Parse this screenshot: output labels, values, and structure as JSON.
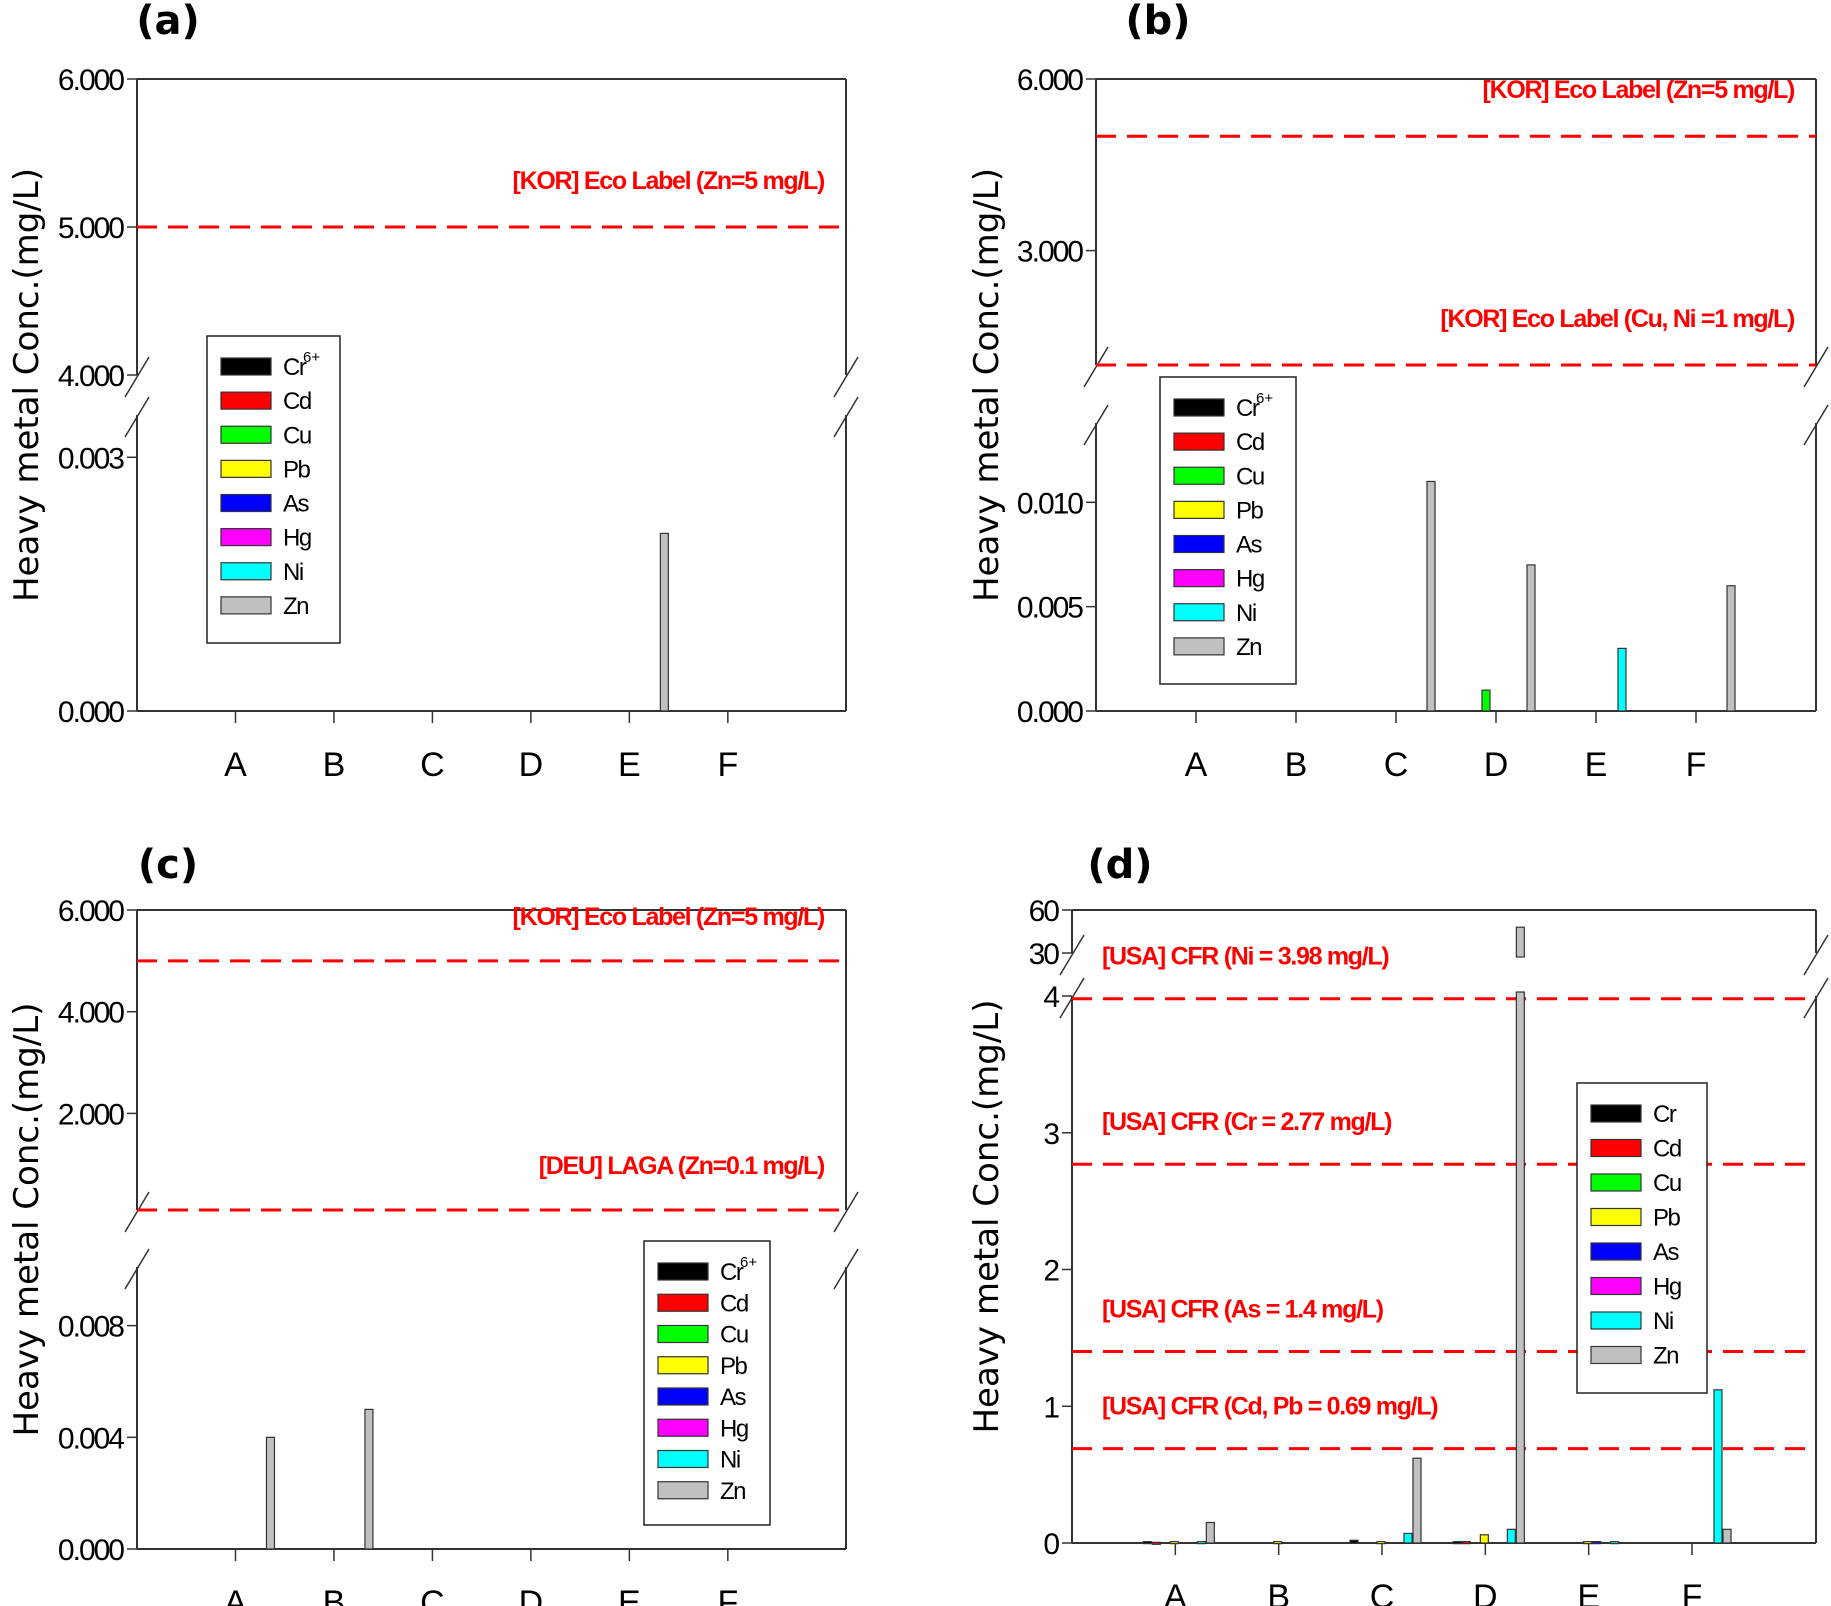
{
  "chart_data": [
    {
      "panel": "(a)",
      "type": "bar",
      "ylabel": "Heavy metal Conc.(mg/L)",
      "xlabel": "",
      "categories": [
        "A",
        "B",
        "C",
        "D",
        "E",
        "F"
      ],
      "broken_axis": true,
      "axis_segments": [
        {
          "range": [
            0,
            0.0035
          ],
          "ticks": [
            {
              "v": 0,
              "label": "0.000"
            },
            {
              "v": 0.003,
              "label": "0.003"
            }
          ]
        },
        {
          "range": [
            4,
            6
          ],
          "ticks": [
            {
              "v": 4,
              "label": "4.000"
            },
            {
              "v": 5,
              "label": "5.000"
            },
            {
              "v": 6,
              "label": "6.000"
            }
          ]
        }
      ],
      "series": [
        {
          "name": "Cr6+",
          "color": "#000000",
          "values": [
            0,
            0,
            0,
            0,
            0,
            0
          ]
        },
        {
          "name": "Cd",
          "color": "#ff0000",
          "values": [
            0,
            0,
            0,
            0,
            0,
            0
          ]
        },
        {
          "name": "Cu",
          "color": "#00ff00",
          "values": [
            0,
            0,
            0,
            0,
            0,
            0
          ]
        },
        {
          "name": "Pb",
          "color": "#ffff00",
          "values": [
            0,
            0,
            0,
            0,
            0,
            0
          ]
        },
        {
          "name": "As",
          "color": "#0000ff",
          "values": [
            0,
            0,
            0,
            0,
            0,
            0
          ]
        },
        {
          "name": "Hg",
          "color": "#ff00ff",
          "values": [
            0,
            0,
            0,
            0,
            0,
            0
          ]
        },
        {
          "name": "Ni",
          "color": "#00ffff",
          "values": [
            0,
            0,
            0,
            0,
            0,
            0
          ]
        },
        {
          "name": "Zn",
          "color": "#c0c0c0",
          "values": [
            0,
            0,
            0,
            0,
            0.0021,
            0
          ]
        }
      ],
      "legend": {
        "entries": [
          "Cr",
          "Cd",
          "Cu",
          "Pb",
          "As",
          "Hg",
          "Ni",
          "Zn"
        ],
        "first_superscript": "6+",
        "placement": "left-middle"
      },
      "reference_lines": [
        {
          "value": 5,
          "label": "[KOR] Eco Label (Zn=5 mg/L)",
          "color": "#ff0000",
          "style": "dashed"
        }
      ]
    },
    {
      "panel": "(b)",
      "type": "bar",
      "ylabel": "Heavy metal Conc.(mg/L)",
      "xlabel": "",
      "categories": [
        "A",
        "B",
        "C",
        "D",
        "E",
        "F"
      ],
      "broken_axis": true,
      "axis_segments": [
        {
          "range": [
            0,
            0.0138
          ],
          "ticks": [
            {
              "v": 0,
              "label": "0.000"
            },
            {
              "v": 0.005,
              "label": "0.005"
            },
            {
              "v": 0.01,
              "label": "0.010"
            }
          ]
        },
        {
          "range": [
            1,
            6
          ],
          "ticks": [
            {
              "v": 3,
              "label": "3.000"
            },
            {
              "v": 6,
              "label": "6.000"
            }
          ]
        }
      ],
      "series": [
        {
          "name": "Cr6+",
          "color": "#000000",
          "values": [
            0,
            0,
            0,
            0,
            0,
            0
          ]
        },
        {
          "name": "Cd",
          "color": "#ff0000",
          "values": [
            0,
            0,
            0,
            0,
            0,
            0
          ]
        },
        {
          "name": "Cu",
          "color": "#00ff00",
          "values": [
            0,
            0,
            0,
            0.001,
            0,
            0
          ]
        },
        {
          "name": "Pb",
          "color": "#ffff00",
          "values": [
            0,
            0,
            0,
            0,
            0,
            0
          ]
        },
        {
          "name": "As",
          "color": "#0000ff",
          "values": [
            0,
            0,
            0,
            0,
            0,
            0
          ]
        },
        {
          "name": "Hg",
          "color": "#ff00ff",
          "values": [
            0,
            0,
            0,
            0,
            0,
            0
          ]
        },
        {
          "name": "Ni",
          "color": "#00ffff",
          "values": [
            0,
            0,
            0,
            0,
            0.003,
            0
          ]
        },
        {
          "name": "Zn",
          "color": "#c0c0c0",
          "values": [
            0,
            0,
            0.011,
            0.007,
            0,
            0.006
          ]
        }
      ],
      "legend": {
        "entries": [
          "Cr",
          "Cd",
          "Cu",
          "Pb",
          "As",
          "Hg",
          "Ni",
          "Zn"
        ],
        "first_superscript": "6+",
        "placement": "left-middle"
      },
      "reference_lines": [
        {
          "value": 5,
          "label": "[KOR] Eco Label (Zn=5 mg/L)",
          "color": "#ff0000",
          "style": "dashed"
        },
        {
          "value": 1,
          "label": "[KOR] Eco Label (Cu, Ni =1 mg/L)",
          "color": "#ff0000",
          "style": "dashed"
        }
      ]
    },
    {
      "panel": "(c)",
      "type": "bar",
      "ylabel": "Heavy metal Conc.(mg/L)",
      "xlabel": "",
      "categories": [
        "A",
        "B",
        "C",
        "D",
        "E",
        "F"
      ],
      "broken_axis": true,
      "axis_segments": [
        {
          "range": [
            0,
            0.0101
          ],
          "ticks": [
            {
              "v": 0,
              "label": "0.000"
            },
            {
              "v": 0.004,
              "label": "0.004"
            },
            {
              "v": 0.008,
              "label": "0.008"
            }
          ]
        },
        {
          "range": [
            0.1,
            6
          ],
          "ticks": [
            {
              "v": 2,
              "label": "2.000"
            },
            {
              "v": 4,
              "label": "4.000"
            },
            {
              "v": 6,
              "label": "6.000"
            }
          ]
        }
      ],
      "series": [
        {
          "name": "Cr6+",
          "color": "#000000",
          "values": [
            0,
            0,
            0,
            0,
            0,
            0
          ]
        },
        {
          "name": "Cd",
          "color": "#ff0000",
          "values": [
            0,
            0,
            0,
            0,
            0,
            0
          ]
        },
        {
          "name": "Cu",
          "color": "#00ff00",
          "values": [
            0,
            0,
            0,
            0,
            0,
            0
          ]
        },
        {
          "name": "Pb",
          "color": "#ffff00",
          "values": [
            0,
            0,
            0,
            0,
            0,
            0
          ]
        },
        {
          "name": "As",
          "color": "#0000ff",
          "values": [
            0,
            0,
            0,
            0,
            0,
            0
          ]
        },
        {
          "name": "Hg",
          "color": "#ff00ff",
          "values": [
            0,
            0,
            0,
            0,
            0,
            0
          ]
        },
        {
          "name": "Ni",
          "color": "#00ffff",
          "values": [
            0,
            0,
            0,
            0,
            0,
            0
          ]
        },
        {
          "name": "Zn",
          "color": "#c0c0c0",
          "values": [
            0.004,
            0.005,
            0,
            0,
            0,
            0
          ]
        }
      ],
      "legend": {
        "entries": [
          "Cr",
          "Cd",
          "Cu",
          "Pb",
          "As",
          "Hg",
          "Ni",
          "Zn"
        ],
        "first_superscript": "6+",
        "placement": "bottom-right"
      },
      "reference_lines": [
        {
          "value": 5,
          "label": "[KOR] Eco Label (Zn=5 mg/L)",
          "color": "#ff0000",
          "style": "dashed"
        },
        {
          "value": 0.1,
          "label": "[DEU] LAGA (Zn=0.1 mg/L)",
          "color": "#ff0000",
          "style": "dashed"
        }
      ]
    },
    {
      "panel": "(d)",
      "type": "bar",
      "ylabel": "Heavy metal Conc.(mg/L)",
      "xlabel": "",
      "categories": [
        "A",
        "B",
        "C",
        "D",
        "E",
        "F"
      ],
      "broken_axis": true,
      "axis_segments": [
        {
          "range": [
            0,
            4
          ],
          "ticks": [
            {
              "v": 0,
              "label": "0"
            },
            {
              "v": 1,
              "label": "1"
            },
            {
              "v": 2,
              "label": "2"
            },
            {
              "v": 3,
              "label": "3"
            },
            {
              "v": 4,
              "label": "4"
            }
          ]
        },
        {
          "range": [
            30,
            60
          ],
          "ticks": [
            {
              "v": 30,
              "label": "30"
            },
            {
              "v": 60,
              "label": "60"
            }
          ]
        }
      ],
      "series": [
        {
          "name": "Cr",
          "color": "#000000",
          "values": [
            0.01,
            0,
            0.02,
            0.01,
            0,
            0
          ]
        },
        {
          "name": "Cd",
          "color": "#ff0000",
          "values": [
            0.005,
            0,
            0,
            0.01,
            0,
            0
          ]
        },
        {
          "name": "Cu",
          "color": "#00ff00",
          "values": [
            0,
            0,
            0,
            0,
            0,
            0
          ]
        },
        {
          "name": "Pb",
          "color": "#ffff00",
          "values": [
            0.01,
            0.01,
            0.01,
            0.06,
            0.01,
            0
          ]
        },
        {
          "name": "As",
          "color": "#0000ff",
          "values": [
            0,
            0,
            0,
            0,
            0.01,
            0
          ]
        },
        {
          "name": "Hg",
          "color": "#ff00ff",
          "values": [
            0,
            0,
            0,
            0,
            0,
            0
          ]
        },
        {
          "name": "Ni",
          "color": "#00ffff",
          "values": [
            0.01,
            0,
            0.07,
            0.1,
            0.01,
            1.12
          ]
        },
        {
          "name": "Zn",
          "color": "#c0c0c0",
          "values": [
            0.15,
            0,
            0.62,
            48,
            0,
            0.1
          ]
        }
      ],
      "legend": {
        "entries": [
          "Cr",
          "Cd",
          "Cu",
          "Pb",
          "As",
          "Hg",
          "Ni",
          "Zn"
        ],
        "first_superscript": "",
        "placement": "right-middle"
      },
      "reference_lines": [
        {
          "value": 3.98,
          "label": "[USA] CFR (Ni = 3.98 mg/L)",
          "color": "#ff0000",
          "style": "dashed"
        },
        {
          "value": 2.77,
          "label": "[USA] CFR (Cr = 2.77 mg/L)",
          "color": "#ff0000",
          "style": "dashed"
        },
        {
          "value": 1.4,
          "label": "[USA] CFR (As = 1.4 mg/L)",
          "color": "#ff0000",
          "style": "dashed"
        },
        {
          "value": 0.69,
          "label": "[USA] CFR (Cd, Pb = 0.69 mg/L)",
          "color": "#ff0000",
          "style": "dashed"
        }
      ]
    }
  ]
}
